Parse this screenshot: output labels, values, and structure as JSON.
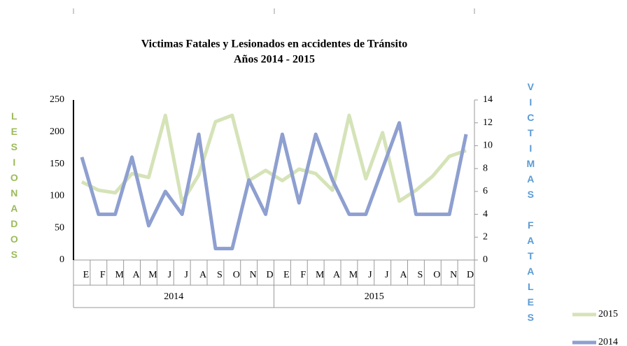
{
  "chart_data": {
    "type": "line",
    "title": "Victimas Fatales y Lesionados en accidentes de Tránsito",
    "subtitle": "Años  2014 - 2015",
    "y_label": "LESIONADOS",
    "y2_label": "VICTIMAS FATALES",
    "categories": [
      "E",
      "F",
      "M",
      "A",
      "M",
      "J",
      "J",
      "A",
      "S",
      "O",
      "N",
      "D",
      "E",
      "F",
      "M",
      "A",
      "M",
      "J",
      "J",
      "A",
      "S",
      "O",
      "N",
      "D"
    ],
    "groups": [
      "2014",
      "2015"
    ],
    "series": [
      {
        "name": "2015",
        "color": "#d5e3b8",
        "values": [
          122,
          109,
          105,
          135,
          129,
          226,
          90,
          133,
          216,
          226,
          124,
          140,
          124,
          142,
          135,
          109,
          226,
          127,
          199,
          92,
          109,
          131,
          162,
          171
        ]
      },
      {
        "name": "2014",
        "color": "#8e9fd0",
        "axis": "y2",
        "values": [
          9,
          4,
          4,
          9,
          3,
          6,
          4,
          11,
          1,
          1,
          7,
          4,
          11,
          5,
          11,
          7,
          4,
          4,
          8,
          12,
          4,
          4,
          4,
          11
        ]
      }
    ],
    "ylim": [
      0,
      250
    ],
    "yticks": [
      0,
      50,
      100,
      150,
      200,
      250
    ],
    "y2lim": [
      0,
      14
    ],
    "y2ticks": [
      0,
      2,
      4,
      6,
      8,
      10,
      12,
      14
    ],
    "legend": "bottom-right"
  }
}
